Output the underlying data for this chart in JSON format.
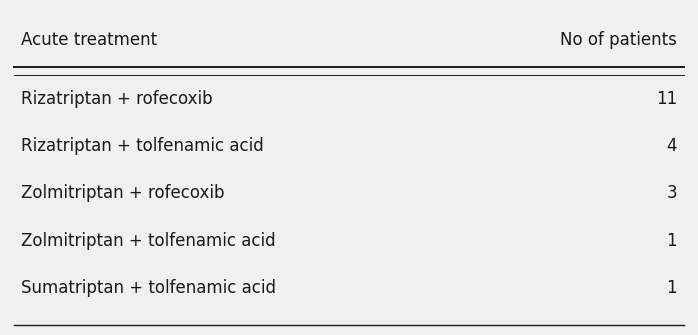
{
  "col1_header": "Acute treatment",
  "col2_header": "No of patients",
  "rows": [
    [
      "Rizatriptan + rofecoxib",
      "11"
    ],
    [
      "Rizatriptan + tolfenamic acid",
      "4"
    ],
    [
      "Zolmitriptan + rofecoxib",
      "3"
    ],
    [
      "Zolmitriptan + tolfenamic acid",
      "1"
    ],
    [
      "Sumatriptan + tolfenamic acid",
      "1"
    ]
  ],
  "bg_color": "#f0f0f0",
  "text_color": "#1a1a1a",
  "font_size": 12,
  "header_font_size": 12,
  "fig_width": 6.98,
  "fig_height": 3.35,
  "dpi": 100
}
